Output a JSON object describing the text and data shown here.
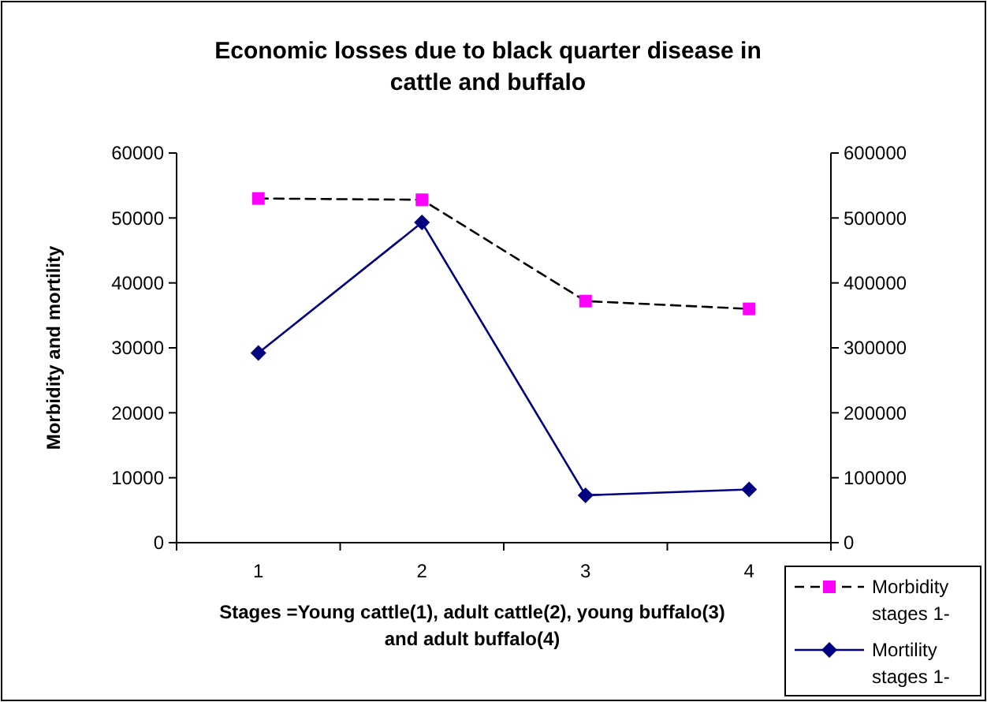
{
  "chart_data": {
    "type": "line",
    "title": "Economic losses due to black quarter disease in cattle and buffalo",
    "xlabel": "Stages =Young cattle(1), adult cattle(2), young buffalo(3) and adult buffalo(4)",
    "ylabel": "Morbidity and mortility",
    "categories": [
      "1",
      "2",
      "3",
      "4"
    ],
    "series": [
      {
        "name": "Morbidity stages 1-",
        "color": "#000000",
        "values": [
          53000,
          52800,
          37200,
          36000
        ],
        "marker": "square",
        "colors": [
          "#ff00ff",
          "#ff00ff",
          "#ff00ff",
          "#ff00ff"
        ],
        "line_style": "dashed"
      },
      {
        "name": "Mortility stages 1-",
        "color": "#000080",
        "values": [
          29200,
          49300,
          7300,
          8200
        ],
        "marker": "diamond",
        "line_style": "solid"
      }
    ],
    "ylim": [
      0,
      60000
    ],
    "yticks": [
      0,
      10000,
      20000,
      30000,
      40000,
      50000,
      60000
    ],
    "y2lim": [
      0,
      600000
    ],
    "y2ticks": [
      0,
      100000,
      200000,
      300000,
      400000,
      500000,
      600000
    ],
    "grid": false,
    "legend": "bottom right"
  }
}
